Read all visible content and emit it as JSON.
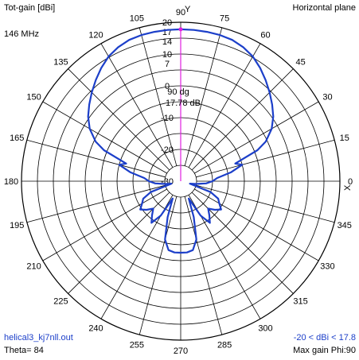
{
  "header": {
    "ylabel": "Tot-gain [dBi]",
    "plane": "Horizontal plane",
    "frequency": "146 MHz"
  },
  "footer": {
    "filename": "helical3_kj7nll.out",
    "theta": "Theta= 84",
    "range": "-20 < dBi < 17.8",
    "max_gain": "Max gain Phi:90"
  },
  "axes": {
    "y_axis": "Y",
    "x_axis": "X"
  },
  "marker": {
    "angle": "90 dg",
    "gain": "17.78 dB"
  },
  "colors": {
    "pattern": "#1c3fc9",
    "marker": "#e020e0",
    "grid": "#000000",
    "text_blue": "#1c3fc9"
  },
  "chart_data": {
    "type": "polar",
    "title": "Horizontal plane",
    "rlabel": "Tot-gain [dBi]",
    "r_range": [
      -30,
      20
    ],
    "r_ring_values": [
      -30,
      -25,
      -20,
      -15,
      -10,
      -5,
      0,
      5,
      10,
      15,
      20
    ],
    "r_tick_labels": [
      "-30",
      "-20",
      "-10",
      "0",
      "7",
      "10",
      "14",
      "17",
      "20"
    ],
    "angle_tick_labels": [
      "0",
      "15",
      "30",
      "45",
      "60",
      "75",
      "90",
      "105",
      "120",
      "135",
      "150",
      "165",
      "180",
      "195",
      "210",
      "225",
      "240",
      "255",
      "270",
      "285",
      "300",
      "315",
      "330",
      "345"
    ],
    "max_gain_dbi": 17.78,
    "max_gain_phi_deg": 90,
    "series": [
      {
        "phi_deg": [
          0,
          5,
          10,
          15,
          18,
          22,
          25,
          30,
          35,
          40,
          45,
          50,
          55,
          60,
          65,
          70,
          75,
          80,
          85,
          90,
          95,
          100,
          105,
          110,
          115,
          120,
          125,
          130,
          135,
          140,
          145,
          150,
          155,
          158,
          162,
          165,
          170,
          175,
          180,
          185,
          190,
          195,
          200,
          205,
          210,
          215,
          220,
          225,
          230,
          235,
          240,
          245,
          250,
          255,
          260,
          265,
          270,
          275,
          280,
          285,
          290,
          295,
          300,
          305,
          310,
          315,
          320,
          325,
          330,
          335,
          340,
          345,
          350,
          355
        ],
        "gain_dbi": [
          -20,
          -18.5,
          -14,
          -10,
          -12,
          -4,
          -0.5,
          3,
          5.5,
          7.5,
          9.5,
          11.5,
          13.5,
          15.3,
          16.5,
          17.3,
          17.6,
          17.7,
          17.75,
          17.78,
          17.75,
          17.7,
          17.6,
          17.3,
          16.5,
          15.3,
          13.5,
          11.5,
          9.5,
          7.5,
          5.5,
          3,
          -0.5,
          -4,
          -12,
          -10,
          -14,
          -18.5,
          -20,
          -22,
          -25,
          -27,
          -20,
          -17,
          -16,
          -14.5,
          -16,
          -17.8,
          -16,
          -14,
          -17.5,
          -24,
          -18,
          -11,
          -8,
          -7.5,
          -7.5,
          -7.5,
          -8,
          -11,
          -18,
          -24,
          -17.5,
          -14,
          -16,
          -17.8,
          -16,
          -14.5,
          -16,
          -17,
          -20,
          -27,
          -25,
          -22
        ]
      }
    ]
  }
}
